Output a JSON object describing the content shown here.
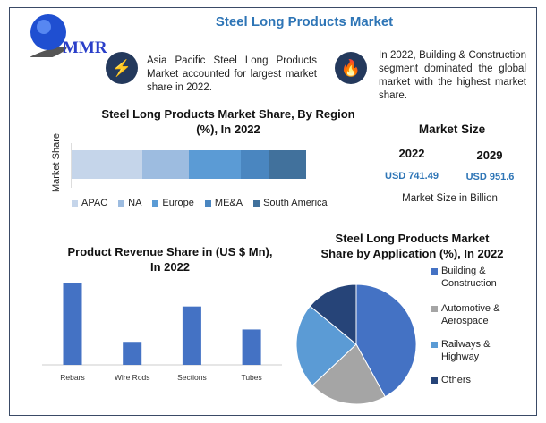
{
  "header": {
    "title": "Steel Long Products Market",
    "logo_text": "MMR"
  },
  "notes": [
    {
      "icon": "lightning-icon",
      "text": "Asia Pacific Steel Long Products Market accounted for largest market share in 2022."
    },
    {
      "icon": "flame-icon",
      "text": "In 2022, Building & Construction segment dominated the global market with the highest market share."
    }
  ],
  "market_size": {
    "heading": "Market Size",
    "years": [
      "2022",
      "2029"
    ],
    "values": [
      "USD 741.49",
      "USD 951.6"
    ],
    "caption": "Market Size in Billion",
    "value_color": "#2e75b6"
  },
  "chart_data": [
    {
      "type": "bar",
      "stacked": true,
      "orientation": "horizontal",
      "title": "Steel Long Products Market Share, By Region (%), In 2022",
      "ylabel": "Market Share",
      "legend_position": "bottom",
      "series": [
        {
          "name": "APAC",
          "values": [
            30
          ],
          "color": "#c5d5ea"
        },
        {
          "name": "NA",
          "values": [
            20
          ],
          "color": "#9dbce0"
        },
        {
          "name": "Europe",
          "values": [
            22
          ],
          "color": "#5b9bd5"
        },
        {
          "name": "ME&A",
          "values": [
            12
          ],
          "color": "#4a86c0"
        },
        {
          "name": "South America",
          "values": [
            16
          ],
          "color": "#41719c"
        }
      ]
    },
    {
      "type": "bar",
      "title": "Product Revenue Share in (US $ Mn), In 2022",
      "categories": [
        "Rebars",
        "Wire Rods",
        "Sections",
        "Tubes"
      ],
      "values": [
        100,
        28,
        71,
        43
      ],
      "color": "#4472c4",
      "grid": false
    },
    {
      "type": "pie",
      "title": "Steel Long Products Market Share by Application  (%), In 2022",
      "legend_position": "right",
      "labels": [
        "Building & Construction",
        "Automotive & Aerospace",
        "Railways & Highway",
        "Others"
      ],
      "values": [
        42,
        21,
        23,
        14
      ],
      "colors": [
        "#4472c4",
        "#a5a5a5",
        "#5b9bd5",
        "#264478"
      ]
    }
  ]
}
